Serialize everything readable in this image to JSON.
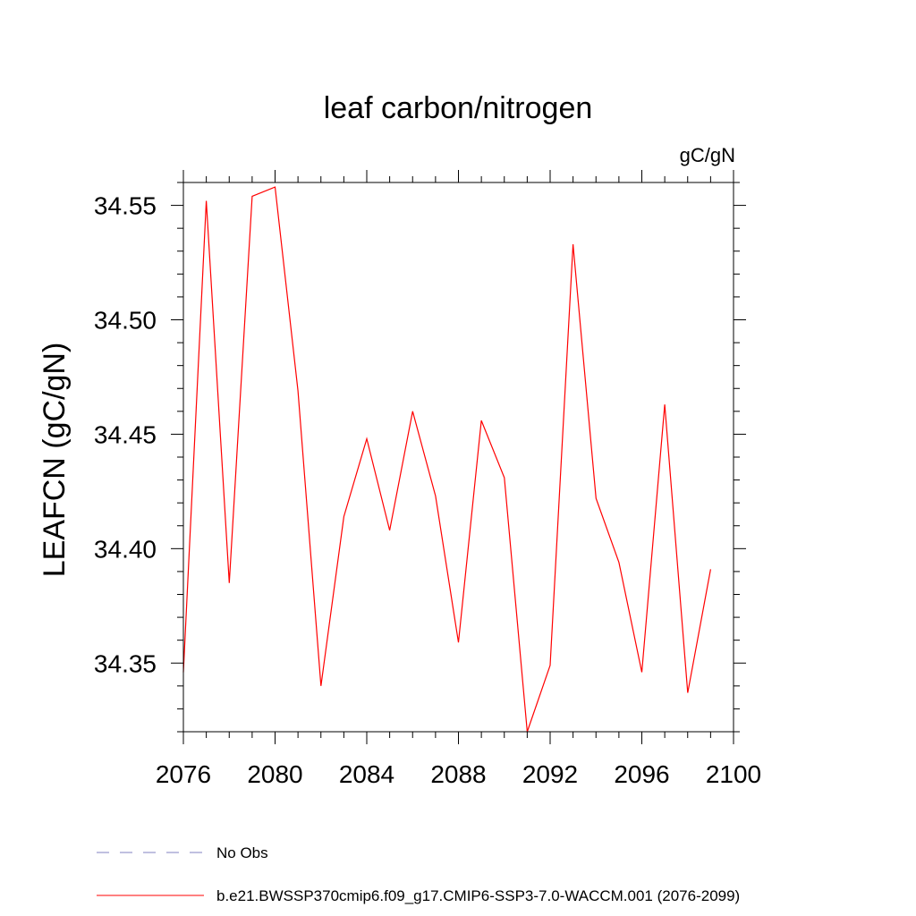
{
  "chart_data": {
    "type": "line",
    "title": "leaf carbon/nitrogen",
    "units_label": "gC/gN",
    "ylabel": "LEAFCN  (gC/gN)",
    "xlabel": "",
    "xlim": [
      2076,
      2100
    ],
    "ylim": [
      34.32,
      34.56
    ],
    "xticks": [
      2076,
      2080,
      2084,
      2088,
      2092,
      2096,
      2100
    ],
    "yticks": [
      34.35,
      34.4,
      34.45,
      34.5,
      34.55
    ],
    "xtick_labels": [
      "2076",
      "2080",
      "2084",
      "2088",
      "2092",
      "2096",
      "2100"
    ],
    "ytick_labels": [
      "34.35",
      "34.40",
      "34.45",
      "34.50",
      "34.55"
    ],
    "grid": false,
    "legend_position": "bottom",
    "series": [
      {
        "name": "b.e21.BWSSP370cmip6.f09_g17.CMIP6-SSP3-7.0-WACCM.001 (2076-2099)",
        "color": "#ff0000",
        "style": "solid",
        "x": [
          2076,
          2077,
          2078,
          2079,
          2080,
          2081,
          2082,
          2083,
          2084,
          2085,
          2086,
          2087,
          2088,
          2089,
          2090,
          2091,
          2092,
          2093,
          2094,
          2095,
          2096,
          2097,
          2098,
          2099
        ],
        "y": [
          34.346,
          34.552,
          34.385,
          34.554,
          34.558,
          34.469,
          34.34,
          34.414,
          34.448,
          34.408,
          34.46,
          34.423,
          34.359,
          34.456,
          34.431,
          34.32,
          34.349,
          34.533,
          34.422,
          34.394,
          34.346,
          34.463,
          34.337,
          34.391
        ]
      },
      {
        "name": "No Obs",
        "color": "#8080c0",
        "style": "dashed",
        "x": [],
        "y": []
      }
    ]
  }
}
